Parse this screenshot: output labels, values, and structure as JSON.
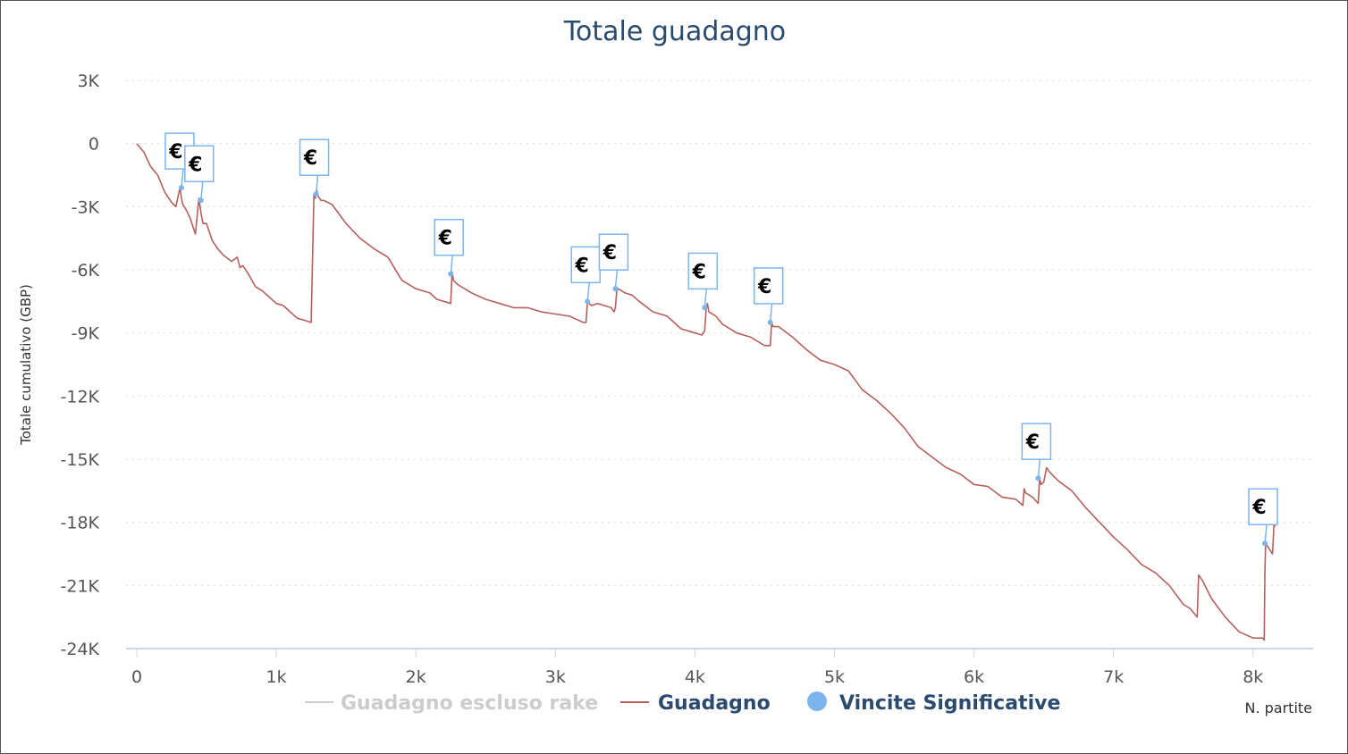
{
  "chart_data": {
    "type": "line",
    "title": "Totale guadagno",
    "xlabel": "N. partite",
    "ylabel": "Totale cumulativo (GBP)",
    "xlim": [
      0,
      8200
    ],
    "ylim": [
      -24000,
      3000
    ],
    "x_ticks": [
      {
        "value": 0,
        "label": "0"
      },
      {
        "value": 1000,
        "label": "1k"
      },
      {
        "value": 2000,
        "label": "2k"
      },
      {
        "value": 3000,
        "label": "3k"
      },
      {
        "value": 4000,
        "label": "4k"
      },
      {
        "value": 5000,
        "label": "5k"
      },
      {
        "value": 6000,
        "label": "6k"
      },
      {
        "value": 7000,
        "label": "7k"
      },
      {
        "value": 8000,
        "label": "8k"
      }
    ],
    "y_ticks": [
      {
        "value": 3000,
        "label": "3K"
      },
      {
        "value": 0,
        "label": "0"
      },
      {
        "value": -3000,
        "label": "-3K"
      },
      {
        "value": -6000,
        "label": "-6K"
      },
      {
        "value": -9000,
        "label": "-9K"
      },
      {
        "value": -12000,
        "label": "-12K"
      },
      {
        "value": -15000,
        "label": "-15K"
      },
      {
        "value": -18000,
        "label": "-18K"
      },
      {
        "value": -21000,
        "label": "-21K"
      },
      {
        "value": -24000,
        "label": "-24K"
      }
    ],
    "grid": "horizontal-dotted",
    "legend_position": "bottom",
    "series": [
      {
        "name": "Guadagno escluso rake",
        "color": "#cccccc",
        "visible": false,
        "x": [],
        "y": []
      },
      {
        "name": "Guadagno",
        "color": "#b5605f",
        "visible": true,
        "x": [
          0,
          50,
          100,
          150,
          200,
          250,
          280,
          310,
          320,
          330,
          350,
          380,
          420,
          445,
          460,
          475,
          500,
          540,
          580,
          620,
          680,
          720,
          740,
          760,
          800,
          850,
          900,
          950,
          1000,
          1050,
          1100,
          1150,
          1200,
          1250,
          1270,
          1280,
          1285,
          1290,
          1300,
          1320,
          1340,
          1400,
          1500,
          1600,
          1700,
          1800,
          1900,
          2000,
          2100,
          2150,
          2200,
          2250,
          2260,
          2270,
          2300,
          2400,
          2500,
          2600,
          2700,
          2800,
          2900,
          3000,
          3100,
          3200,
          3220,
          3230,
          3240,
          3260,
          3300,
          3350,
          3400,
          3420,
          3430,
          3440,
          3450,
          3500,
          3550,
          3600,
          3700,
          3800,
          3850,
          3900,
          4000,
          4050,
          4070,
          4080,
          4090,
          4100,
          4150,
          4200,
          4300,
          4400,
          4500,
          4540,
          4550,
          4560,
          4600,
          4700,
          4800,
          4900,
          5000,
          5100,
          5200,
          5300,
          5400,
          5500,
          5600,
          5700,
          5800,
          5900,
          6000,
          6100,
          6200,
          6300,
          6350,
          6360,
          6370,
          6420,
          6460,
          6470,
          6480,
          6500,
          6520,
          6540,
          6600,
          6700,
          6800,
          6900,
          7000,
          7100,
          7200,
          7300,
          7400,
          7500,
          7550,
          7600,
          7610,
          7620,
          7640,
          7700,
          7800,
          7900,
          8000,
          8050,
          8070,
          8080,
          8085,
          8090,
          8100,
          8120,
          8140,
          8150,
          8160
        ],
        "y": [
          0,
          -400,
          -1100,
          -1500,
          -2300,
          -2800,
          -3000,
          -2100,
          -2600,
          -2900,
          -3100,
          -3500,
          -4300,
          -2600,
          -3300,
          -3800,
          -3800,
          -4600,
          -5000,
          -5300,
          -5600,
          -5400,
          -5900,
          -5800,
          -6200,
          -6800,
          -7000,
          -7300,
          -7600,
          -7700,
          -8000,
          -8300,
          -8400,
          -8500,
          -2400,
          -2600,
          -2300,
          -2200,
          -2500,
          -2700,
          -2700,
          -2900,
          -3800,
          -4500,
          -5000,
          -5400,
          -6500,
          -6900,
          -7100,
          -7400,
          -7500,
          -7600,
          -6100,
          -6500,
          -6700,
          -7100,
          -7400,
          -7600,
          -7800,
          -7800,
          -8000,
          -8100,
          -8200,
          -8500,
          -8500,
          -7500,
          -7600,
          -7700,
          -7600,
          -7700,
          -7800,
          -8000,
          -7800,
          -7000,
          -6900,
          -7100,
          -7200,
          -7500,
          -8000,
          -8200,
          -8500,
          -8800,
          -9000,
          -9100,
          -8900,
          -7900,
          -7600,
          -8000,
          -8200,
          -8600,
          -9000,
          -9200,
          -9600,
          -9600,
          -8500,
          -8700,
          -8700,
          -9200,
          -9800,
          -10300,
          -10500,
          -10800,
          -11700,
          -12200,
          -12800,
          -13500,
          -14400,
          -14900,
          -15400,
          -15700,
          -16200,
          -16300,
          -16800,
          -16900,
          -17200,
          -16400,
          -16600,
          -16800,
          -17100,
          -15900,
          -16200,
          -16100,
          -15400,
          -15600,
          -16000,
          -16500,
          -17300,
          -18000,
          -18700,
          -19300,
          -20000,
          -20400,
          -21000,
          -21900,
          -22100,
          -22500,
          -20500,
          -20600,
          -20800,
          -21600,
          -22500,
          -23200,
          -23500,
          -23500,
          -23500,
          -23600,
          -20500,
          -19000,
          -19100,
          -19300,
          -19500,
          -18100,
          -18200
        ]
      },
      {
        "name": "Vincite Significative",
        "color": "#7cb5ec",
        "visible": true,
        "type": "scatter",
        "marker_label": "€",
        "x": [
          320,
          460,
          1285,
          2250,
          3230,
          3430,
          4070,
          4540,
          6460,
          8085
        ],
        "y": [
          -2100,
          -2700,
          -2400,
          -6200,
          -7500,
          -6900,
          -7800,
          -8500,
          -15900,
          -19000
        ]
      }
    ]
  }
}
